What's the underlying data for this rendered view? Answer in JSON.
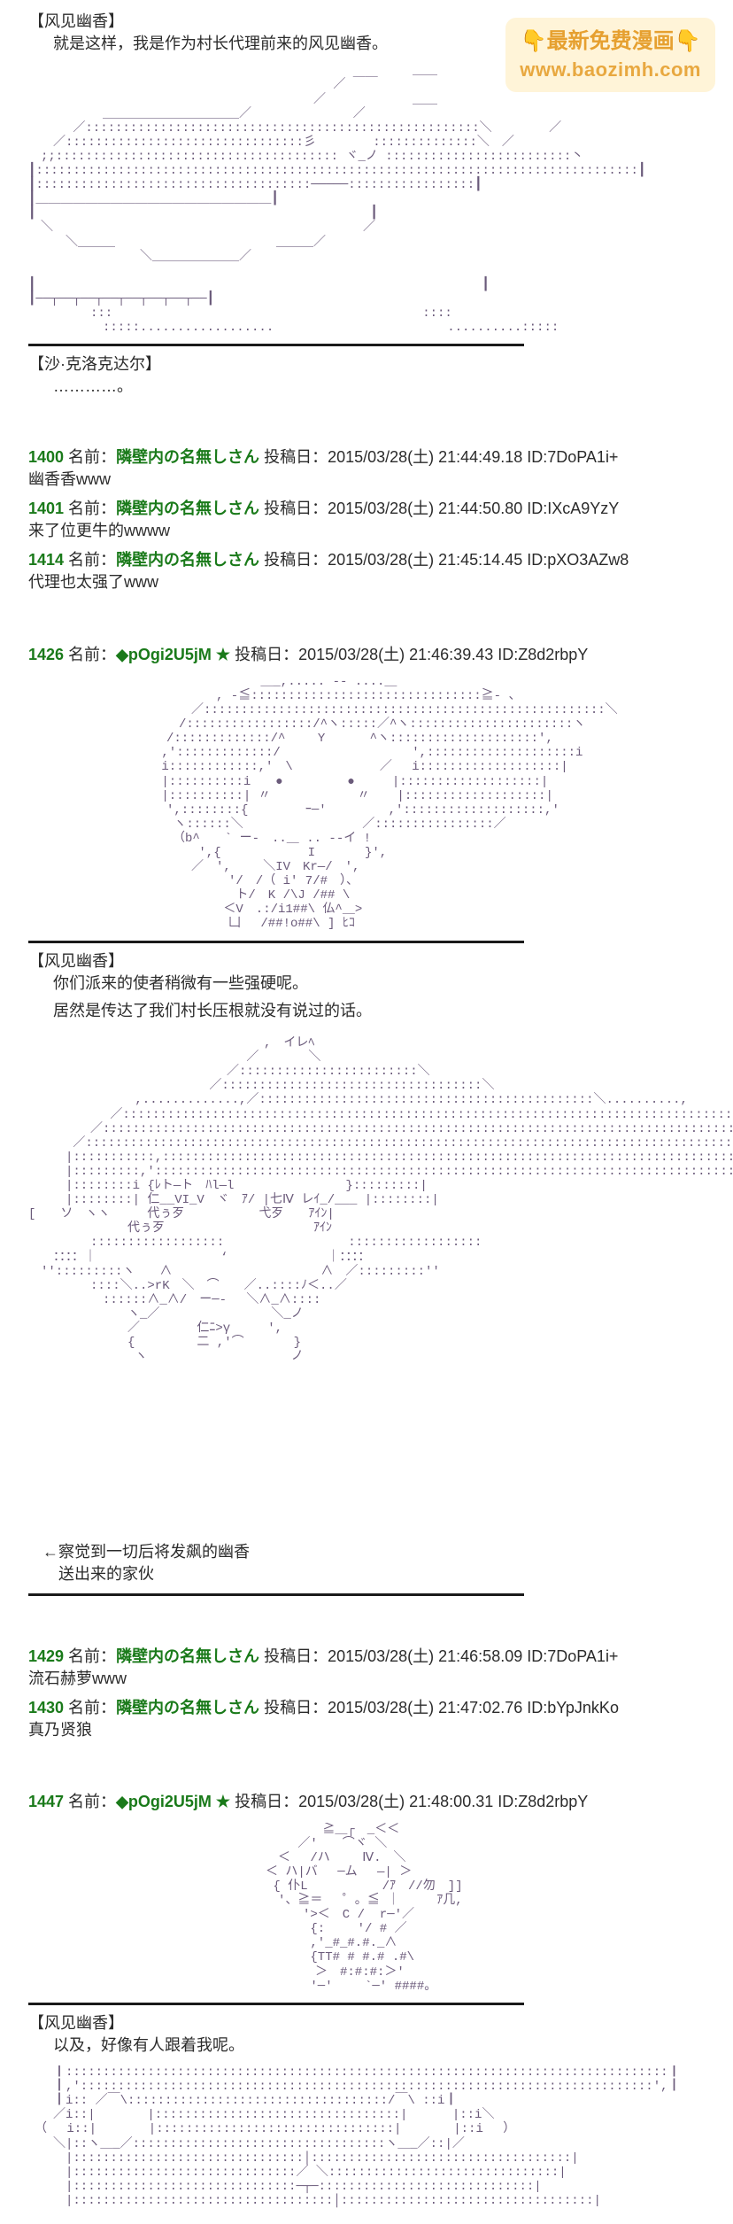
{
  "watermark": {
    "emoji": "👇",
    "text": "最新免费漫画",
    "url": "www.baozimh.com",
    "bg": "#fff4d6",
    "color": "#e6a030"
  },
  "blocks": [
    {
      "type": "speaker",
      "text": "【风见幽香】"
    },
    {
      "type": "dialogue",
      "text": "就是这样，我是作为村长代理前来的风见幽香。"
    },
    {
      "type": "aa",
      "art": "1"
    },
    {
      "type": "hr"
    },
    {
      "type": "speaker",
      "text": "【沙·克洛克达尔】"
    },
    {
      "type": "dialogue",
      "text": "…………。"
    },
    {
      "type": "spacer"
    },
    {
      "type": "post",
      "num": "1400",
      "anon": true,
      "meta": "名前：隣壁内の名無しさん 投稿日：2015/03/28(土) 21:44:49.18 ID:7DoPA1i+",
      "comment": "幽香香www"
    },
    {
      "type": "post",
      "num": "1401",
      "anon": true,
      "meta": "名前：隣壁内の名無しさん 投稿日：2015/03/28(土) 21:44:50.80 ID:IXcA9YzY",
      "comment": "来了位更牛的wwww"
    },
    {
      "type": "post",
      "num": "1414",
      "anon": true,
      "meta": "名前：隣壁内の名無しさん 投稿日：2015/03/28(土) 21:45:14.45 ID:pXO3AZw8",
      "comment": "代理也太强了www"
    },
    {
      "type": "spacer"
    },
    {
      "type": "post",
      "num": "1426",
      "trip": "◆pOgi2U5jM ★",
      "meta": "名前： 投稿日：2015/03/28(土) 21:46:39.43 ID:Z8d2rbpY"
    },
    {
      "type": "aa",
      "art": "2"
    },
    {
      "type": "hr"
    },
    {
      "type": "speaker",
      "text": "【风见幽香】"
    },
    {
      "type": "dialogue",
      "text": "你们派来的使者稍微有一些强硬呢。"
    },
    {
      "type": "dialogue",
      "text": "居然是传达了我们村长压根就没有说过的话。"
    },
    {
      "type": "aa",
      "art": "3",
      "annotation1": "←察觉到一切后将发飙的幽香",
      "annotation2": "　送出来的家伙"
    },
    {
      "type": "hr"
    },
    {
      "type": "spacer"
    },
    {
      "type": "post",
      "num": "1429",
      "anon": true,
      "meta": "名前：隣壁内の名無しさん 投稿日：2015/03/28(土) 21:46:58.09 ID:7DoPA1i+",
      "comment": "流石赫萝www"
    },
    {
      "type": "post",
      "num": "1430",
      "anon": true,
      "meta": "名前：隣壁内の名無しさん 投稿日：2015/03/28(土) 21:47:02.76 ID:bYpJnkKo",
      "comment": "真乃贤狼"
    },
    {
      "type": "spacer"
    },
    {
      "type": "post",
      "num": "1447",
      "trip": "◆pOgi2U5jM ★",
      "meta": "名前： 投稿日：2015/03/28(土) 21:48:00.31 ID:Z8d2rbpY"
    },
    {
      "type": "aa",
      "art": "4"
    },
    {
      "type": "hr"
    },
    {
      "type": "speaker",
      "text": "【风见幽香】"
    },
    {
      "type": "dialogue",
      "text": "以及，好像有人跟着我呢。"
    },
    {
      "type": "aa",
      "art": "5"
    }
  ],
  "ascii": {
    "1": "　　　　　　　　　　　　　　　　　　　　　　　　　　　　　　　＿＿\n　　　　　　　　　　　　　　　　　　　　　　　　 ／ ￣￣\n　　　　　　　　　　　　　　　　　　　　　　　／　　　　　　　＿＿\n　　　　　　＿＿＿＿＿＿＿＿＿＿＿／　　　　　　　  ／\n　　　 ／:::::::::::::::::::::::::::::::::::::::::::::::::::::＼　　　　 ／\n　　／::::::::::::::::::::::::::::::::彡　　　　 ::::::::::::::＼　／\n　;;:::::::::::::::::::::::::::::::::::::: ヾ_ノ :::::::::::::::::::::::::丶\n┃:::::::::::::::::::::::::::::::::::::::::::::::::::::::::::::::::::::::::::::::::┃\n┃:::::::::::::::::::::::::::::::::::::─────:::::::::::::::::┃\n┃＿＿＿＿＿＿＿＿＿＿＿＿＿＿＿＿＿＿＿┃\n┃　　　　　　　　　　　　　　　　　　　　　　　　　　　┃\n　＼　　　　　　　　　　　　　　　　　　　　　　　　　／\n　　　＼＿＿＿　　　　　　　　　　　　　＿＿＿／\n　　　　　　　　　＼＿＿＿＿＿＿＿／\n\n┃　　　　　　　　　　　　　　　　　　　　　　　　　　　　　　　　　　　　┃\n┃──┬──┬──┬──┬──┬──┬──┬──┃\n　　　　　:::　　　　　　　　　　　　　　　　　　　　　　　　　::::\n　　　　　　:::::..................　　　　　　　　　　　　　　..........:::::",
    "2": "　　　　　　　　　　　 ＿_,..... -- ....＿\n　　　　　　　　, -≦:::::::::::::::::::::::::::::::≧- 、\n　　　　　　／::::::::::::::::::::::::::::::::::::::::::::::::::::::＼\n　　　　　/:::::::::::::::::/^ヽ:::::／^ヽ::::::::::::::::::::::ヽ\n　　　　/:::::::::::::/^　　 Y　　　 ^ヽ::::::::::::::::::::',\n　　　 ,':::::::::::::/　　　　　　　　　　 ',::::::::::::::::::::i\n　　　 i::::::::::::,'　\\　　　　　　　／　 i:::::::::::::::::::|\n　　　 |::::::::::i　　●　　 　 　●　　　|:::::::::::::::::::|\n　　　 |::::::::::| 〃　　　　　　　〃　  |:::::::::::::::::::|\n　　　　',::::::::{　　　　 ｰ─'　　　　　,':::::::::::::::::::,'\n　　　　 ヽ::::::＼　　　　　　　　　 ／::::::::::::::::／\n　　　　　（b^　　` ー-　..＿ .. -‐イ !\n　　　　　　 ',{　　　　　　　I　　　　}',\n　　　　　　／　',　　 ＼IV　Kr―/　',\n　　　　　　　　　'/　/（ i' 7/#　）、\n　　　　　　　　　 ト/　K /\\J /## \\\n　　　　　　　　 ＜V　.:/i1##\\ 仏^＿>\n　　　　　　　　　凵　 /##!o##\\ ] ﾋｺ",
    "3": "　　　　　　　　　　　　　　　　　　　,　イレﾍ\n　　　　　　　　　　　　　　　　　 ／　　　　＼\n　　　　　　　　　　　　　　　　／::::::::::::::::::::::::＼\n　　　　　　　　　　　　　　 ／:::::::::::::::::::::::::::::::::::＼\n　　　　　　　　 ,.............,／:::::::::::::::::::::::::::::::::::::::::::::＼..........,\n　　　　　　 ／:::::::::::::::::::::::::::::::::::::::::::::::::::::::::::::::::::::::::::::::::::::＼　　　＜二z\n　　　　　／:::::::::::::::::::::::::::::::::::::::::::::::::::::::::::::::::::::::::::::::::::::::::::::::::＼\n　　　 ／::::::::::::::::::::::::::::::::::::::::::::::::::::::::::::::::::::::::::::::::::::::::::::::::::::::::::::＼\n　　　|:::::::::::,:::::::::::::::::::::::::::::::::::::::::::::::::::::::::::::::::::::::::::::::::::::::::::::::,:::::::::::|\n　　　|:::::::::,'::::::::::::::::::::::::::::::::::::::::::::::::::::::::::::::::::::::::::::::::::::::::::::::::',::::::::::|\n　　　|::::::::i {ﾚト―ト　ﾊl―l　　　　　　　　　}:::::::::|\n　　　|::::::::| 仁__VI_V　ヾ　ｱ/ |七Ⅳ レｲ_/___ |::::::::|\n[　　ソ　ヽヽ　　　代ぅ歹　　　　　　弋歹　　ｱｲﾝ|\n　　　　　　　　代ぅ歹　　　　　　　　　　　　ｱｲﾝ\n　　　　　::::::::::::::::::　　　　　　　　　　::::::::::::::::::\n　　：：：：｜　　　　　　　　　　‘　　　　　　　　｜：：：：\n　'':::::::::ヽ　　∧　　　　　　　　　　　　∧　／:::::::::''\n　　　　　::::＼..>rK　＼　⌒　　／..::::ﾉ＜..／\n　　　　　　::::::∧_∧/　ー─‐　 ＼∧_∧::::\n　　　　　　　　ヽ_／　　　　　　　　　＼_ノ\n　　　　　　　　／　　　　 仁ﾆ>γ　　　',\n　　　　　　　　{　　　　　二 ,'⌒　　　　}\n　　　　　　　　 ヽ　　　　　　　　　　　 ノ",
    "4": "　　　　　　　　　　　　　　　　 ≧＿┌　_＜＜\n　　　　　　　　　　　　　　 ／'　　⌒ヾ ＼\n　　　　　　　　　　　　　＜　 /ハ　　 Ⅳ.　＼\n　　　　　　　　　　　　＜ ハ|バ　 ─ム　 ―| ＞\n　　　　　　　　　　　　 { 仆L　　　　　　/ｱ　//勿　]]\n　　　　　　　　　　　　　'、≧＝　 ゜。≦ ｜　　　ｱ几,\n　　　　　　　　　　　　　　　'>＜　C /  r─'／\n　　　　　　　　　　　　　　　 {:　　 '/ # ／\n　　　　　　　　　　　　　　　 ,'_#_#.#._∧\n　　　　　　　　　　　　　　　 {TT# # #.# .#\\\n　　　　　　　　　　　　　　　　＞　#:#:#:＞'\n　　　　　　　　　　　　　　　 '─'　　 `─' ####。",
    "5": "　　┃:::::::::::::::::::::::::::::::::::::::::::::::::::::::::::::::::::::::::::::::::┃\n　　┃,':::::::::::::::::::::::::::::::::::::::::::::::::::::::::::::::::::::::::::::',┃\n　　┃i:: ／￣\\:::::::::::::::::::::::::::::::::::/￣\\ ::i┃\n　　／i::|　 　 　|:::::::::::::::::::::::::::::::::|　　　 |::i＼\n　（　 i::|　  　　|::::::::::::::::::::::::::::::::|　  　　|::i　 ）\n　　＼|::ヽ＿_／::::::::::::::::::::::::::::::::::ヽ＿_／::|／\n　　　|:::::::::::::::::::::::::::::::│:::::::::::::::::::::::::::::::::::|\n　　　|::::::::::::::::::::::::::::::／ ＼:::::::::::::::::::::::::::::::|\n　　　|::::::::::::::::::::::::::::::─┬─:::::::::::::::::::::::::::::|\n　　　|:::::::::::::::::::::::::::::::::::│::::::::::::::::::::::::::::::::::|"
  }
}
